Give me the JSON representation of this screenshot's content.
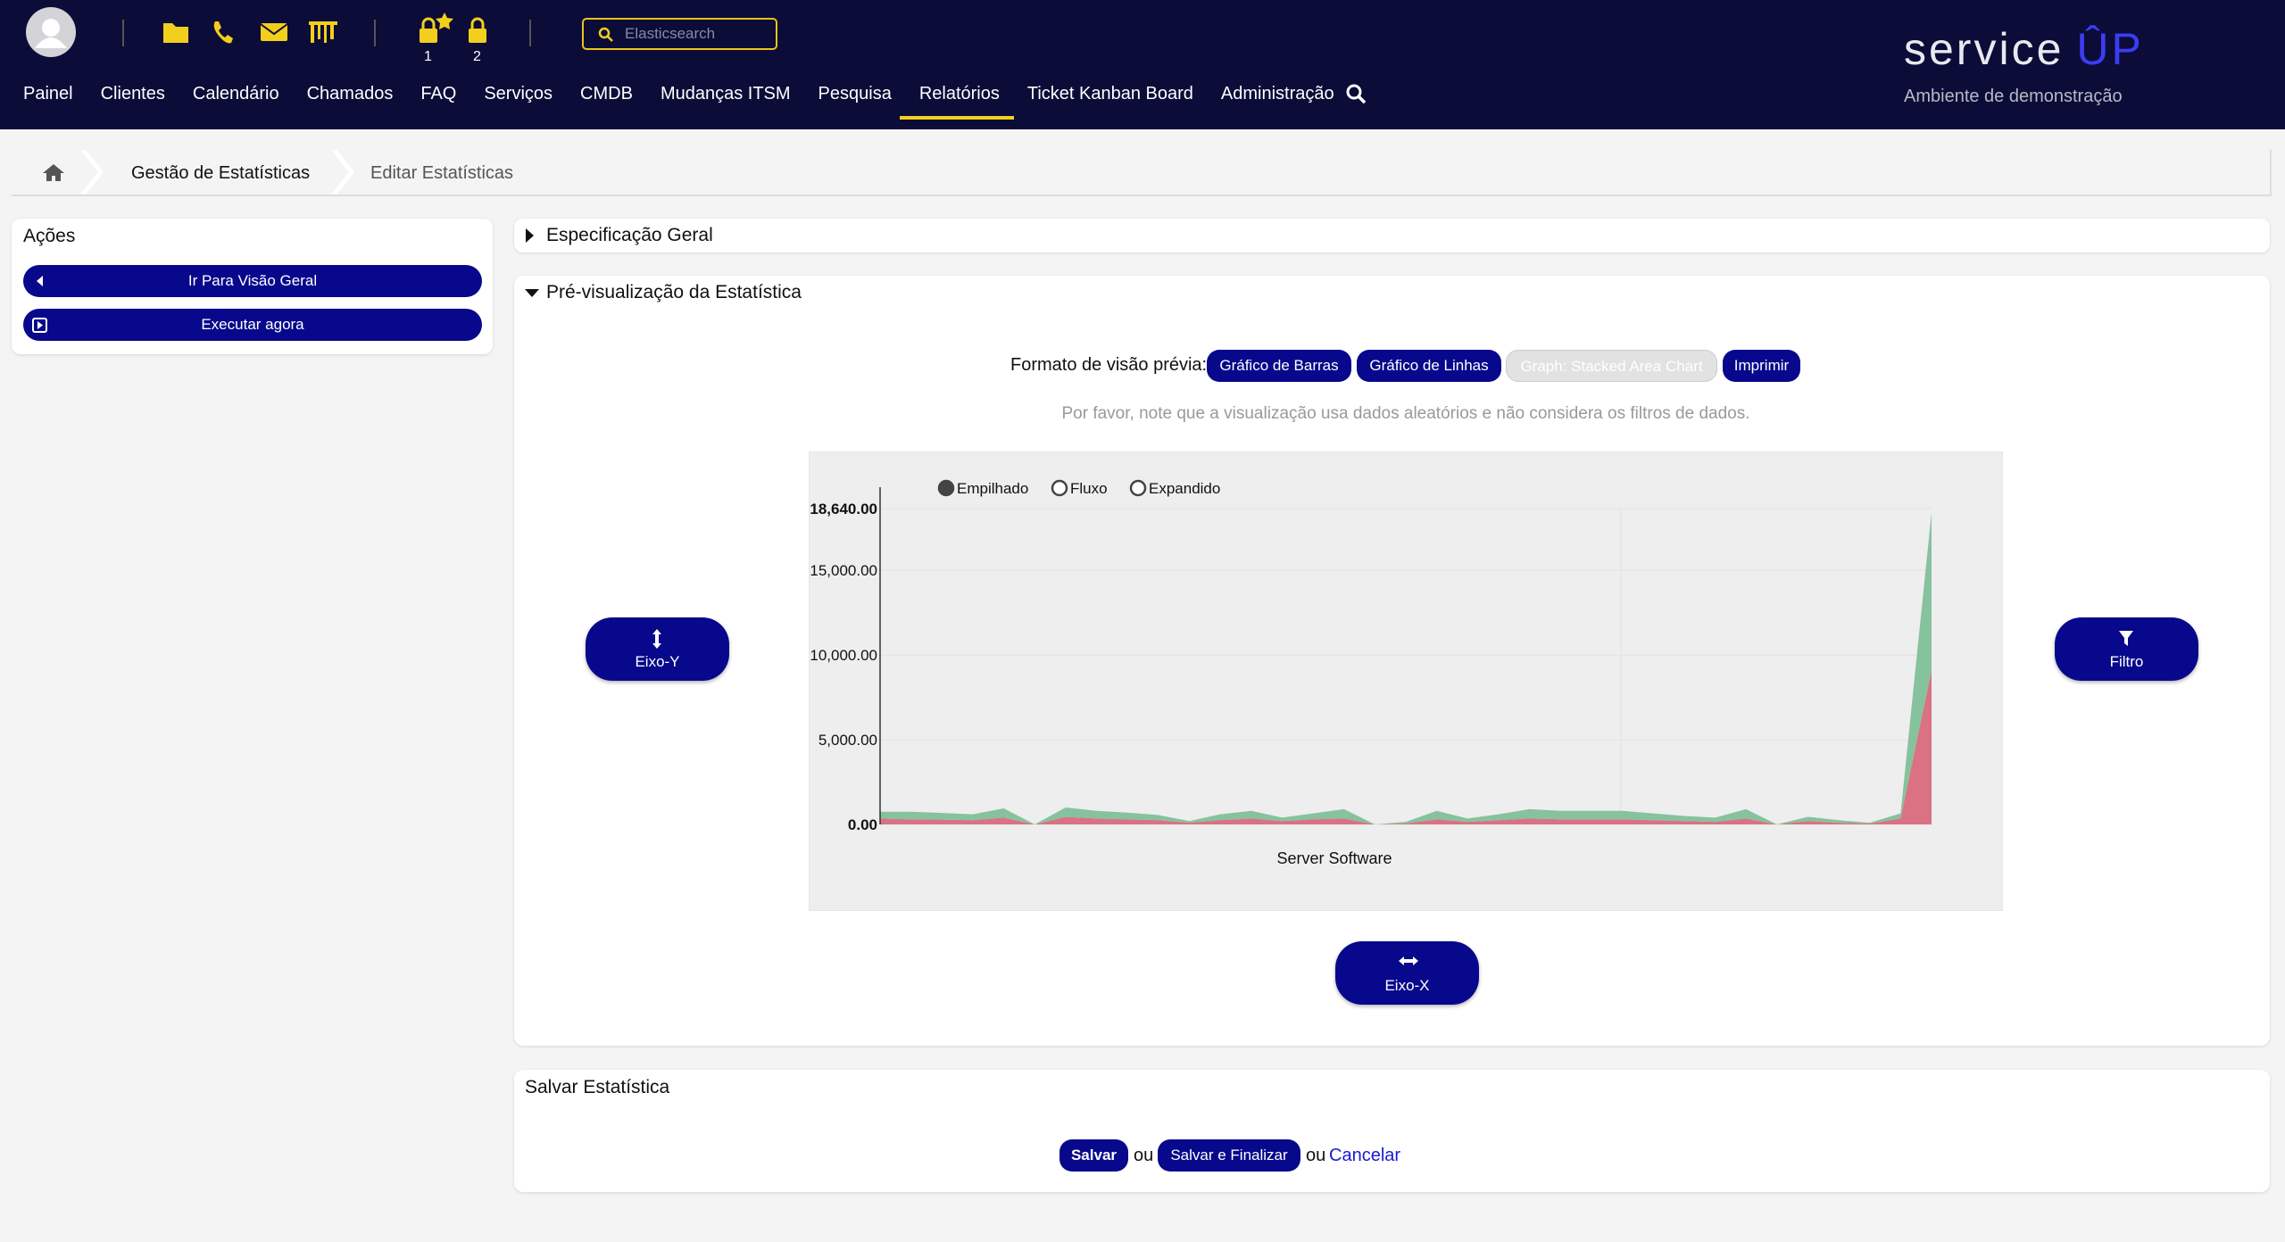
{
  "header": {
    "notifications": [
      "1",
      "2"
    ],
    "search_placeholder": "Elasticsearch",
    "nav": [
      "Painel",
      "Clientes",
      "Calendário",
      "Chamados",
      "FAQ",
      "Serviços",
      "CMDB",
      "Mudanças ITSM",
      "Pesquisa",
      "Relatórios",
      "Ticket Kanban Board",
      "Administração"
    ],
    "active_nav": "Relatórios",
    "brand": "service",
    "brand_accent": "ÛP",
    "brand_subtitle": "Ambiente de demonstração"
  },
  "breadcrumb": [
    "Gestão de Estatísticas",
    "Editar Estatísticas"
  ],
  "sidebar": {
    "title": "Ações",
    "buttons": [
      "Ir Para Visão Geral",
      "Executar agora"
    ]
  },
  "general_spec": {
    "title": "Especificação Geral"
  },
  "preview": {
    "title": "Pré-visualização da Estatística",
    "format_label": "Formato de visão prévia:",
    "format_buttons": [
      "Gráfico de Barras",
      "Gráfico de Linhas",
      "Graph: Stacked Area Chart",
      "Imprimir"
    ],
    "note": "Por favor, note que a visualização usa dados aleatórios e não considera os filtros de dados.",
    "y_axis_button": "Eixo-Y",
    "filter_button": "Filtro",
    "x_axis_button": "Eixo-X"
  },
  "chart_data": {
    "type": "stacked_area",
    "modes": [
      "Empilhado",
      "Fluxo",
      "Expandido"
    ],
    "selected_mode": "Empilhado",
    "x_label": "Server Software",
    "categories": [
      null,
      null,
      null,
      null,
      null,
      null,
      null,
      null,
      null,
      null,
      null,
      null,
      null,
      null,
      null,
      null,
      null,
      null,
      null,
      null,
      null,
      null,
      null,
      null,
      null,
      null,
      null,
      null,
      null,
      null,
      null,
      null,
      null,
      null,
      null
    ],
    "series": [
      {
        "color": "#d86a7c",
        "values": [
          350,
          300,
          280,
          250,
          400,
          0,
          450,
          350,
          300,
          250,
          100,
          250,
          350,
          200,
          300,
          350,
          0,
          50,
          300,
          150,
          250,
          350,
          300,
          300,
          300,
          250,
          200,
          150,
          350,
          0,
          200,
          100,
          50,
          350,
          9100
        ]
      },
      {
        "color": "#7fbf98",
        "values": [
          400,
          450,
          400,
          350,
          550,
          0,
          550,
          450,
          400,
          300,
          100,
          350,
          450,
          200,
          350,
          550,
          0,
          100,
          500,
          200,
          350,
          550,
          500,
          500,
          500,
          400,
          300,
          250,
          550,
          0,
          250,
          150,
          50,
          300,
          9300
        ]
      }
    ],
    "ylim": [
      0,
      18640
    ],
    "yticks": [
      {
        "value": 0,
        "label": "0.00"
      },
      {
        "value": 5000,
        "label": "5,000.00"
      },
      {
        "value": 10000,
        "label": "10,000.00"
      },
      {
        "value": 15000,
        "label": "15,000.00"
      },
      {
        "value": 18640,
        "label": "18,640.00"
      }
    ],
    "grid": true
  },
  "save": {
    "title": "Salvar Estatística",
    "save_button": "Salvar",
    "or_1": "ou",
    "save_finish_button": "Salvar e Finalizar",
    "or_2": "ou",
    "cancel_link": "Cancelar"
  }
}
